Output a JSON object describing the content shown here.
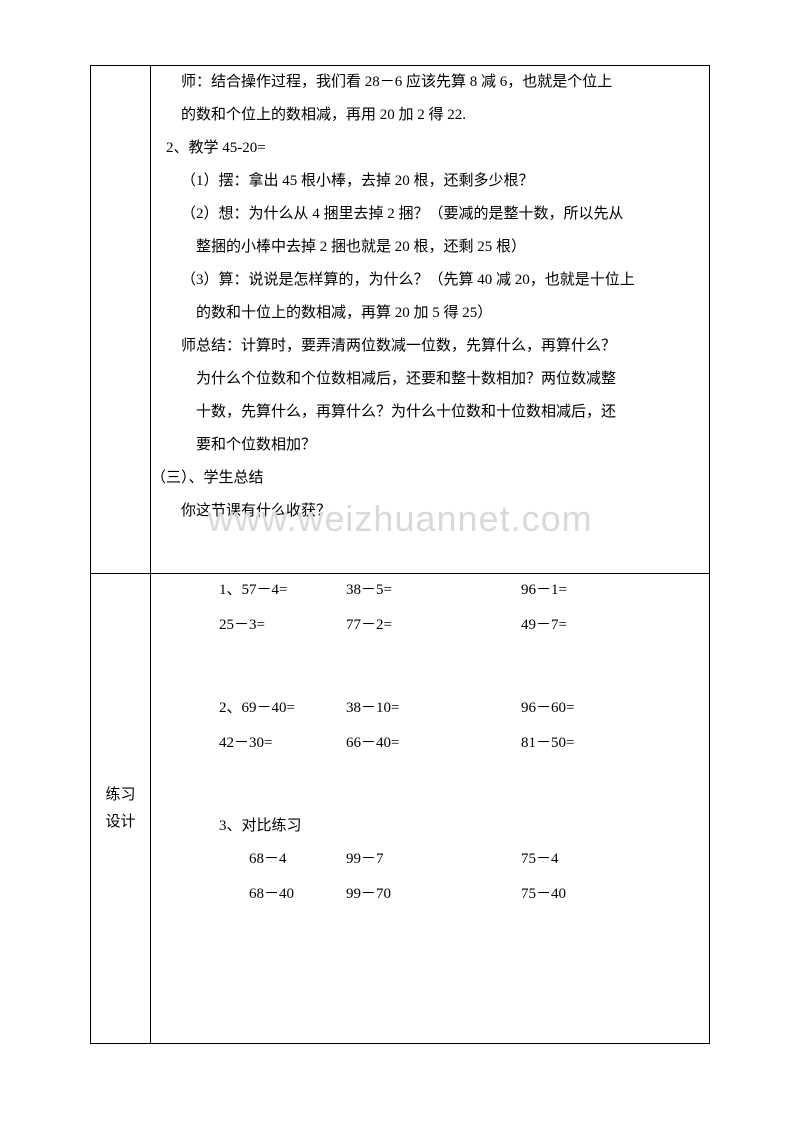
{
  "watermark": "www.weizhuannet.com",
  "section1": {
    "lines": [
      {
        "cls": "indent-3",
        "text": "师：结合操作过程，我们看 28－6 应该先算 8 减 6，也就是个位上"
      },
      {
        "cls": "indent-3",
        "text": "的数和个位上的数相减，再用 20 加 2 得 22."
      },
      {
        "cls": "indent-2",
        "text": "2、教学 45-20="
      },
      {
        "cls": "indent-3",
        "text": "（1）摆：拿出 45 根小棒，去掉 20 根，还剩多少根？"
      },
      {
        "cls": "indent-3",
        "text": "（2）想：为什么从 4 捆里去掉 2 捆？（要减的是整十数，所以先从"
      },
      {
        "cls": "indent-sub",
        "text": "整捆的小棒中去掉 2 捆也就是 20 根，还剩 25 根）"
      },
      {
        "cls": "indent-3",
        "text": "（3）算：说说是怎样算的，为什么？（先算 40 减 20，也就是十位上"
      },
      {
        "cls": "indent-sub",
        "text": "的数和十位上的数相减，再算 20 加 5 得 25）"
      },
      {
        "cls": "indent-3",
        "text": "师总结：计算时，要弄清两位数减一位数，先算什么，再算什么？"
      },
      {
        "cls": "indent-sub",
        "text": "为什么个位数和个位数相减后，还要和整十数相加？两位数减整"
      },
      {
        "cls": "indent-sub",
        "text": "十数，先算什么，再算什么？为什么十位数和十位数相减后，还"
      },
      {
        "cls": "indent-sub",
        "text": "要和个位数相加？"
      },
      {
        "cls": "section-header",
        "text": "（三）、学生总结"
      },
      {
        "cls": "section-sub",
        "text": "你这节课有什么收获？"
      }
    ]
  },
  "section2": {
    "label_line1": "练习",
    "label_line2": "设计",
    "group1": {
      "rows": [
        {
          "num": "1、",
          "c1": "57－4=",
          "c2": "38－5=",
          "c3": "96－1="
        },
        {
          "num": "",
          "c1": "25－3=",
          "c2": "77－2=",
          "c3": "49－7="
        }
      ]
    },
    "group2": {
      "rows": [
        {
          "num": "2、",
          "c1": "69－40=",
          "c2": "38－10=",
          "c3": "96－60="
        },
        {
          "num": "",
          "c1": "42－30=",
          "c2": "66－40=",
          "c3": "81－50="
        }
      ]
    },
    "group3": {
      "title": "3、对比练习",
      "rows": [
        {
          "c1": "68－4",
          "c2": "99－7",
          "c3": "75－4"
        },
        {
          "c1": "68－40",
          "c2": "99－70",
          "c3": "75－40"
        }
      ]
    }
  },
  "style": {
    "font_size": 15,
    "line_height": 2.2,
    "border_color": "#000000",
    "background_color": "#ffffff",
    "text_color": "#000000",
    "watermark_color": "#d9d9d9",
    "watermark_font_size": 36
  }
}
